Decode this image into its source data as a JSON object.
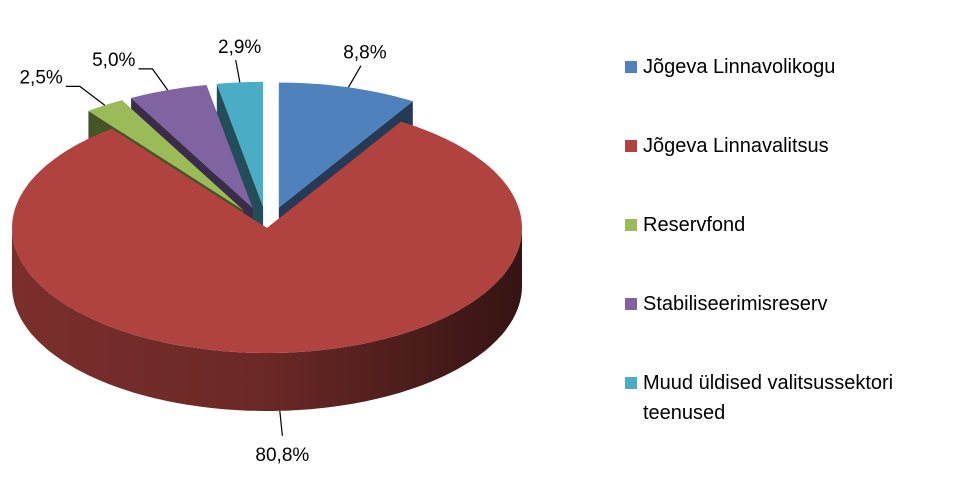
{
  "chart_data": {
    "type": "pie3d",
    "categories": [
      "Jõgeva Linnavolikogu",
      "Jõgeva Linnavalitsus",
      "Reservfond",
      "Stabiliseerimisreserv",
      "Muud üldised valitsussektori teenused"
    ],
    "values": [
      8.8,
      80.8,
      2.5,
      5.0,
      2.9
    ],
    "value_labels": [
      "8,8%",
      "80,8%",
      "2,5%",
      "5,0%",
      "2,9%"
    ],
    "colors": [
      "#4f81bd",
      "#b0433f",
      "#9bbb59",
      "#8064a2",
      "#4bacc6"
    ],
    "exploded": [
      true,
      false,
      true,
      true,
      true
    ],
    "legend": "right"
  }
}
